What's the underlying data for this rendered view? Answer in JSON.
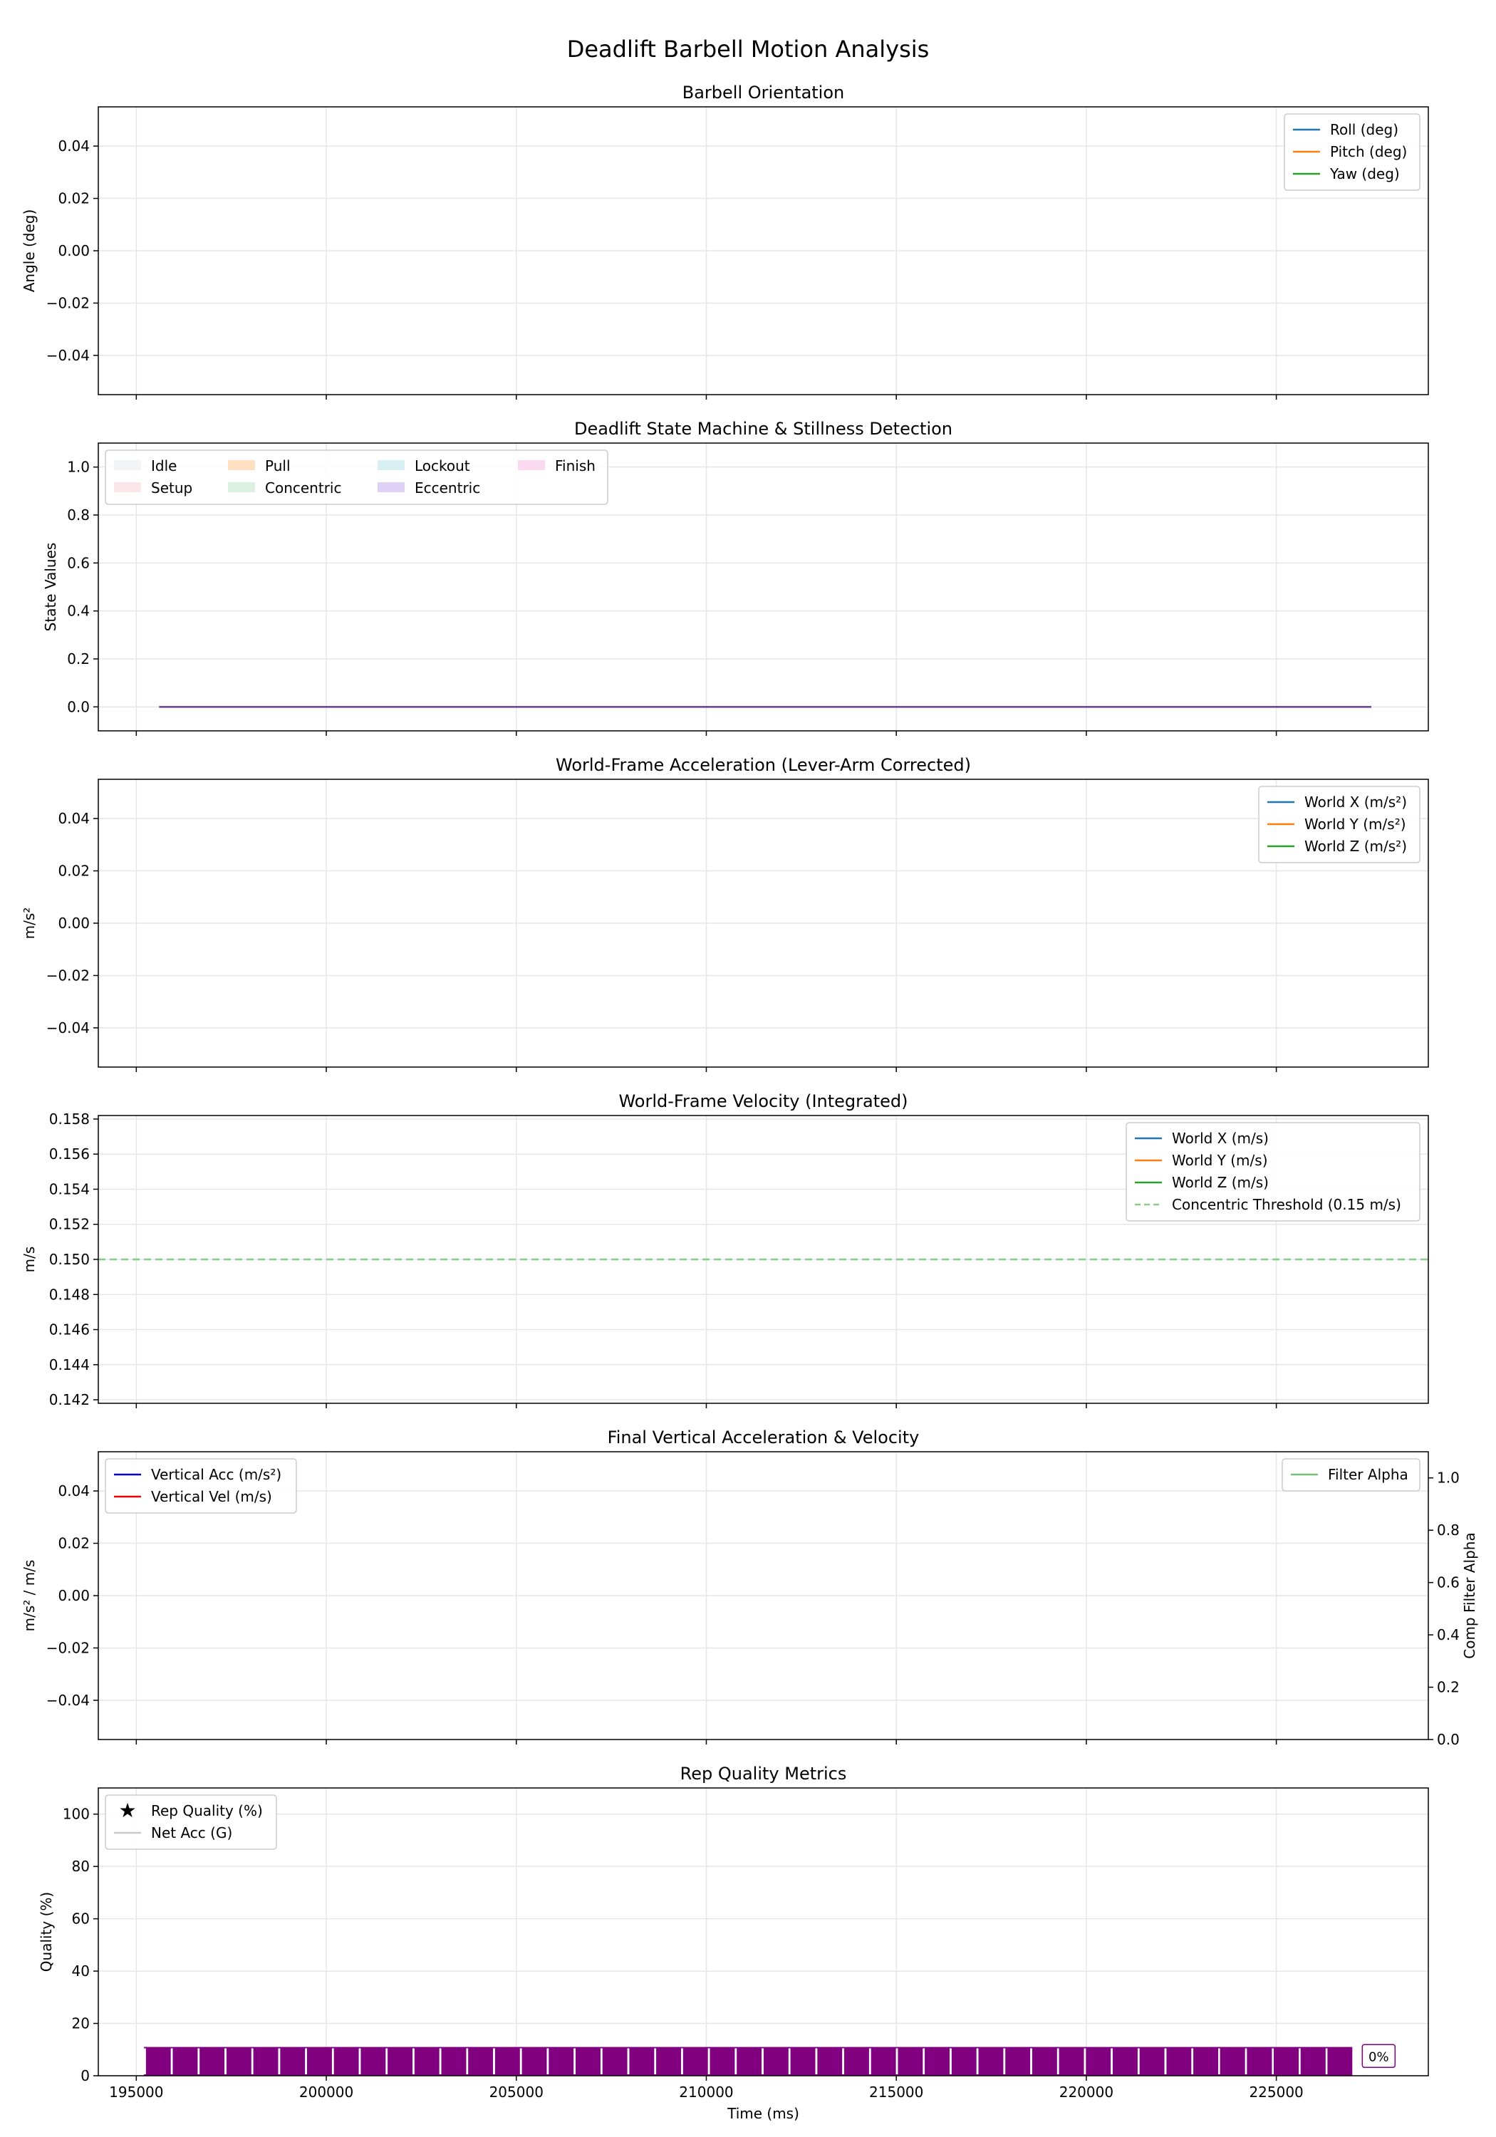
{
  "figure": {
    "title": "Deadlift Barbell Motion Analysis"
  },
  "chart_data": [
    {
      "id": "orientation",
      "type": "line",
      "title": "Barbell Orientation",
      "xlabel": "",
      "ylabel": "Angle (deg)",
      "xlim": [
        194000,
        229000
      ],
      "ylim": [
        -0.055,
        0.055
      ],
      "yticks": [
        -0.04,
        -0.02,
        0.0,
        0.02,
        0.04
      ],
      "ytick_labels": [
        "−0.04",
        "−0.02",
        "0.00",
        "0.02",
        "0.04"
      ],
      "grid": true,
      "legend_position": "upper right",
      "series": [
        {
          "name": "Roll (deg)",
          "color": "#1f77b4",
          "style": "solid",
          "values": []
        },
        {
          "name": "Pitch (deg)",
          "color": "#ff7f0e",
          "style": "solid",
          "values": []
        },
        {
          "name": "Yaw (deg)",
          "color": "#2ca02c",
          "style": "solid",
          "values": []
        }
      ]
    },
    {
      "id": "state",
      "type": "line",
      "title": "Deadlift State Machine & Stillness Detection",
      "xlabel": "",
      "ylabel": "State Values",
      "xlim": [
        194000,
        229000
      ],
      "ylim": [
        -0.1,
        1.1
      ],
      "yticks": [
        0.0,
        0.2,
        0.4,
        0.6,
        0.8,
        1.0
      ],
      "ytick_labels": [
        "0.0",
        "0.2",
        "0.4",
        "0.6",
        "0.8",
        "1.0"
      ],
      "grid": true,
      "legend_position": "upper left",
      "legend_columns": 4,
      "state_legend": [
        {
          "name": "Idle",
          "color": "#e9ecef"
        },
        {
          "name": "Setup",
          "color": "#f8d7da"
        },
        {
          "name": "Pull",
          "color": "#ffcc99"
        },
        {
          "name": "Concentric",
          "color": "#c3e6cb"
        },
        {
          "name": "Lockout",
          "color": "#bee5eb"
        },
        {
          "name": "Eccentric",
          "color": "#c9b3f0"
        },
        {
          "name": "Finish",
          "color": "#f5c2e7"
        }
      ],
      "series": [
        {
          "name": "",
          "color": "#6a3d9a",
          "style": "solid",
          "x": [
            195600,
            227500
          ],
          "values": [
            0.0,
            0.0
          ]
        }
      ]
    },
    {
      "id": "world_acc",
      "type": "line",
      "title": "World-Frame Acceleration (Lever-Arm Corrected)",
      "xlabel": "",
      "ylabel": "m/s²",
      "xlim": [
        194000,
        229000
      ],
      "ylim": [
        -0.055,
        0.055
      ],
      "yticks": [
        -0.04,
        -0.02,
        0.0,
        0.02,
        0.04
      ],
      "ytick_labels": [
        "−0.04",
        "−0.02",
        "0.00",
        "0.02",
        "0.04"
      ],
      "grid": true,
      "legend_position": "upper right",
      "series": [
        {
          "name": "World X (m/s²)",
          "color": "#1f77b4",
          "style": "solid",
          "values": []
        },
        {
          "name": "World Y (m/s²)",
          "color": "#ff7f0e",
          "style": "solid",
          "values": []
        },
        {
          "name": "World Z (m/s²)",
          "color": "#2ca02c",
          "style": "solid",
          "values": []
        }
      ]
    },
    {
      "id": "world_vel",
      "type": "line",
      "title": "World-Frame Velocity (Integrated)",
      "xlabel": "",
      "ylabel": "m/s",
      "xlim": [
        194000,
        229000
      ],
      "ylim": [
        0.1418,
        0.1582
      ],
      "yticks": [
        0.142,
        0.144,
        0.146,
        0.148,
        0.15,
        0.152,
        0.154,
        0.156,
        0.158
      ],
      "ytick_labels": [
        "0.142",
        "0.144",
        "0.146",
        "0.148",
        "0.150",
        "0.152",
        "0.154",
        "0.156",
        "0.158"
      ],
      "grid": true,
      "legend_position": "upper right",
      "series": [
        {
          "name": "World X (m/s)",
          "color": "#1f77b4",
          "style": "solid",
          "values": []
        },
        {
          "name": "World Y (m/s)",
          "color": "#ff7f0e",
          "style": "solid",
          "values": []
        },
        {
          "name": "World Z (m/s)",
          "color": "#2ca02c",
          "style": "solid",
          "values": []
        },
        {
          "name": "Concentric Threshold (0.15 m/s)",
          "color": "#88cc88",
          "style": "dashed",
          "x": [
            194000,
            229000
          ],
          "values": [
            0.15,
            0.15
          ]
        }
      ]
    },
    {
      "id": "final_vertical",
      "type": "line",
      "title": "Final Vertical Acceleration & Velocity",
      "xlabel": "",
      "ylabel": "m/s² / m/s",
      "ylabel_right": "Comp Filter Alpha",
      "xlim": [
        194000,
        229000
      ],
      "ylim": [
        -0.055,
        0.055
      ],
      "ylim_right": [
        0.0,
        1.1
      ],
      "yticks": [
        -0.04,
        -0.02,
        0.0,
        0.02,
        0.04
      ],
      "ytick_labels": [
        "−0.04",
        "−0.02",
        "0.00",
        "0.02",
        "0.04"
      ],
      "yticks_right": [
        0.0,
        0.2,
        0.4,
        0.6,
        0.8,
        1.0
      ],
      "ytick_labels_right": [
        "0.0",
        "0.2",
        "0.4",
        "0.6",
        "0.8",
        "1.0"
      ],
      "grid": true,
      "legend_position": "upper left",
      "legend_right_position": "upper right",
      "series": [
        {
          "name": "Vertical Acc (m/s²)",
          "color": "#0000cc",
          "style": "solid",
          "values": []
        },
        {
          "name": "Vertical Vel (m/s)",
          "color": "#ee0000",
          "style": "solid",
          "values": []
        }
      ],
      "series_right": [
        {
          "name": "Filter Alpha",
          "color": "#77c077",
          "style": "solid",
          "values": []
        }
      ]
    },
    {
      "id": "rep_quality",
      "type": "scatter",
      "title": "Rep Quality Metrics",
      "xlabel": "Time (ms)",
      "ylabel": "Quality (%)",
      "xlim": [
        194000,
        229000
      ],
      "ylim": [
        0,
        110
      ],
      "yticks": [
        0,
        20,
        40,
        60,
        80,
        100
      ],
      "ytick_labels": [
        "0",
        "20",
        "40",
        "60",
        "80",
        "100"
      ],
      "xticks": [
        195000,
        200000,
        205000,
        210000,
        215000,
        220000,
        225000
      ],
      "xtick_labels": [
        "195000",
        "200000",
        "205000",
        "210000",
        "215000",
        "220000",
        "225000"
      ],
      "grid": true,
      "legend_position": "upper left",
      "series": [
        {
          "name": "Rep Quality (%)",
          "color": "#800080",
          "marker": "star",
          "values": [
            0
          ]
        },
        {
          "name": "Net Acc (G)",
          "color": "#c8c8c8",
          "style": "solid",
          "values": []
        }
      ],
      "annotation_band": {
        "x_start": 195200,
        "x_end": 227000,
        "y_top": 11,
        "color": "#800080"
      },
      "annotations": [
        {
          "text": "0%",
          "x": 227600,
          "y": 7
        }
      ]
    }
  ]
}
